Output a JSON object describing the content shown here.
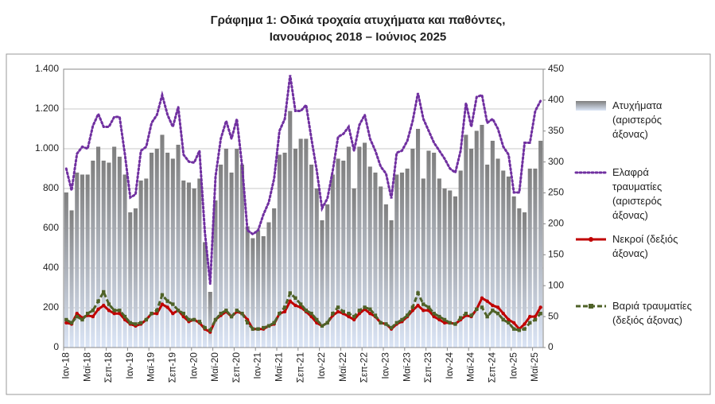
{
  "chart_data": {
    "type": "bar-line",
    "title": [
      "Γράφημα 1: Οδικά τροχαία ατυχήματα και παθόντες,",
      "Ιανουάριος 2018 – Ιούνιος 2025"
    ],
    "categories": [
      "Ιαν-18",
      null,
      null,
      null,
      "Μαϊ-18",
      null,
      null,
      null,
      "Σεπ-18",
      null,
      null,
      null,
      "Ιαν-19",
      null,
      null,
      null,
      "Μαϊ-19",
      null,
      null,
      null,
      "Σεπ-19",
      null,
      null,
      null,
      "Ιαν-20",
      null,
      null,
      null,
      "Μαϊ-20",
      null,
      null,
      null,
      "Σεπ-20",
      null,
      null,
      null,
      "Ιαν-21",
      null,
      null,
      null,
      "Μαϊ-21",
      null,
      null,
      null,
      "Σεπ-21",
      null,
      null,
      null,
      "Ιαν-22",
      null,
      null,
      null,
      "Μαϊ-22",
      null,
      null,
      null,
      "Σεπ-22",
      null,
      null,
      null,
      "Ιαν-23",
      null,
      null,
      null,
      "Μαϊ-23",
      null,
      null,
      null,
      "Σεπ-23",
      null,
      null,
      null,
      "Ιαν-24",
      null,
      null,
      null,
      "Μαϊ-24",
      null,
      null,
      null,
      "Σεπ-24",
      null,
      null,
      null,
      "Ιαν-25",
      null,
      null,
      null,
      "Μαϊ-25",
      null
    ],
    "series": [
      {
        "name": "Ατυχήματα (αριστερός άξονας)",
        "type": "bar",
        "axis": "y",
        "color": "#7f7f7f",
        "values": [
          780,
          690,
          880,
          870,
          870,
          940,
          1010,
          940,
          930,
          1010,
          960,
          870,
          680,
          700,
          840,
          850,
          980,
          1000,
          1070,
          980,
          950,
          1020,
          840,
          830,
          800,
          850,
          530,
          280,
          740,
          920,
          1000,
          880,
          1000,
          920,
          610,
          550,
          590,
          560,
          630,
          700,
          970,
          980,
          1190,
          1000,
          1050,
          1050,
          920,
          800,
          640,
          720,
          870,
          950,
          940,
          1010,
          800,
          1010,
          1030,
          910,
          880,
          810,
          720,
          640,
          870,
          880,
          900,
          1000,
          1100,
          850,
          990,
          980,
          850,
          800,
          790,
          760,
          890,
          1070,
          1000,
          1090,
          1120,
          920,
          1040,
          950,
          890,
          860,
          760,
          700,
          680,
          900,
          900,
          1040
        ]
      },
      {
        "name": "Ελαφρά τραυματίες (αριστερός άξονας)",
        "type": "line",
        "axis": "y",
        "color": "#7030a0",
        "values": [
          900,
          790,
          975,
          1010,
          1000,
          1115,
          1175,
          1110,
          1110,
          1160,
          1160,
          970,
          755,
          770,
          990,
          1010,
          1130,
          1170,
          1270,
          1170,
          1110,
          1210,
          970,
          935,
          930,
          990,
          580,
          320,
          860,
          1050,
          1140,
          1050,
          1150,
          910,
          590,
          570,
          590,
          670,
          730,
          850,
          1090,
          1150,
          1370,
          1190,
          1190,
          1220,
          1050,
          890,
          700,
          750,
          890,
          1060,
          1075,
          1110,
          990,
          1120,
          1170,
          1050,
          990,
          910,
          875,
          750,
          980,
          990,
          1040,
          1140,
          1280,
          1150,
          1090,
          1030,
          990,
          950,
          900,
          880,
          990,
          1230,
          1110,
          1260,
          1270,
          1130,
          1150,
          1100,
          1010,
          970,
          780,
          780,
          1030,
          1030,
          1190,
          1240
        ]
      },
      {
        "name": "Νεκροί (δεξιός άξονας)",
        "type": "line",
        "axis": "y2",
        "color": "#c00000",
        "values": [
          40,
          38,
          55,
          48,
          52,
          50,
          62,
          68,
          60,
          55,
          55,
          45,
          38,
          35,
          38,
          45,
          55,
          55,
          70,
          65,
          55,
          60,
          50,
          42,
          45,
          40,
          30,
          25,
          45,
          52,
          58,
          50,
          58,
          55,
          45,
          30,
          30,
          30,
          35,
          38,
          55,
          58,
          75,
          68,
          65,
          58,
          50,
          40,
          35,
          40,
          52,
          58,
          55,
          50,
          45,
          55,
          62,
          55,
          50,
          40,
          38,
          30,
          38,
          42,
          50,
          60,
          68,
          60,
          60,
          50,
          45,
          40,
          40,
          38,
          45,
          52,
          50,
          62,
          80,
          75,
          68,
          65,
          55,
          45,
          40,
          30,
          38,
          50,
          50,
          65
        ]
      },
      {
        "name": "Βαριά τραυματίες (δεξιός άξονας)",
        "type": "line",
        "axis": "y2",
        "color": "#4f6228",
        "values": [
          45,
          40,
          50,
          45,
          55,
          60,
          75,
          90,
          70,
          60,
          60,
          50,
          40,
          38,
          40,
          45,
          55,
          60,
          85,
          75,
          70,
          60,
          55,
          45,
          45,
          42,
          32,
          28,
          45,
          55,
          60,
          50,
          60,
          55,
          40,
          30,
          30,
          32,
          35,
          40,
          55,
          65,
          88,
          80,
          70,
          60,
          55,
          45,
          35,
          40,
          55,
          65,
          58,
          55,
          50,
          60,
          65,
          62,
          52,
          40,
          38,
          32,
          40,
          45,
          52,
          65,
          88,
          70,
          65,
          55,
          50,
          45,
          40,
          38,
          48,
          55,
          52,
          62,
          65,
          50,
          60,
          55,
          45,
          40,
          30,
          28,
          30,
          40,
          45,
          55
        ]
      }
    ],
    "ylim": [
      0,
      1400
    ],
    "yticks": [
      0,
      200,
      400,
      600,
      800,
      {
        "value": 1000,
        "label": "1.000"
      },
      {
        "value": 1200,
        "label": "1.200"
      },
      {
        "value": 1400,
        "label": "1.400"
      }
    ],
    "y2lim": [
      0,
      450
    ],
    "y2ticks": [
      0,
      50,
      100,
      150,
      200,
      250,
      300,
      350,
      400,
      450
    ],
    "grid": true
  }
}
